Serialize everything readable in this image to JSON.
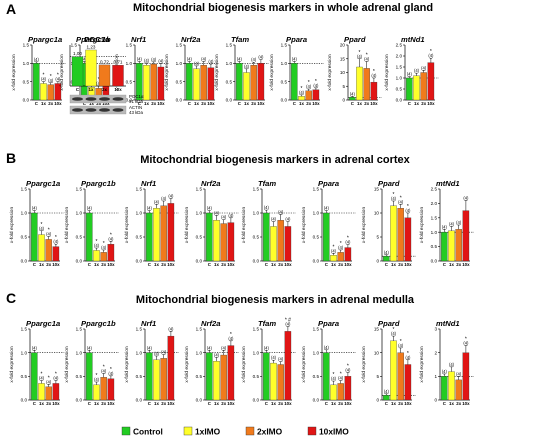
{
  "colors": {
    "control": "#22cc22",
    "x1": "#ffff2a",
    "x2": "#f07a1c",
    "x10": "#e01515"
  },
  "ylabel": "x-fold expression",
  "categories": [
    "C",
    "1x",
    "2x",
    "10x"
  ],
  "legend": [
    {
      "label": "Control",
      "color": "#22cc22"
    },
    {
      "label": "1xIMO",
      "color": "#ffff2a"
    },
    {
      "label": "2xIMO",
      "color": "#f07a1c"
    },
    {
      "label": "10xIMO",
      "color": "#e01515"
    }
  ],
  "western_blot": {
    "title": "PGC1α",
    "values": [
      "1,00",
      "1,23",
      "0,72",
      "0,71"
    ],
    "x_labels": [
      "C",
      "1x",
      "2x",
      "10x"
    ],
    "bands": [
      {
        "name": "PGC1α",
        "size": "91 kDa"
      },
      {
        "name": "ACTIN",
        "size": "43 kDa"
      }
    ]
  },
  "chart_data": [
    {
      "panel": "A",
      "type": "bar",
      "title": "Mitochondrial biogenesis markers in whole adrenal gland",
      "categories": [
        "C",
        "1x",
        "2x",
        "10x"
      ],
      "genes": [
        {
          "name": "Ppargc1a",
          "ylim": [
            0,
            1.5
          ],
          "yticks": [
            "0.0",
            "0.5",
            "1.0",
            "1.5"
          ],
          "values": [
            1.0,
            0.45,
            0.42,
            0.45
          ],
          "errors": [
            0.04,
            0.05,
            0.05,
            0.05
          ],
          "n": [
            "(4)",
            "(4)",
            "(4)",
            "(4)"
          ],
          "stars": [
            "",
            "*",
            "*",
            "*"
          ]
        },
        {
          "name": "Ppargc1b",
          "ylim": [
            0,
            1.5
          ],
          "yticks": [
            "0.0",
            "0.5",
            "1.0",
            "1.5"
          ],
          "values": [
            1.0,
            0.35,
            0.32,
            0.4
          ],
          "errors": [
            0.05,
            0.06,
            0.06,
            0.06
          ],
          "n": [
            "(4)",
            "(4)",
            "(4)",
            "(4)"
          ],
          "stars": [
            "",
            "*",
            "*",
            "*"
          ]
        },
        {
          "name": "Nrf1",
          "ylim": [
            0,
            1.5
          ],
          "yticks": [
            "0.0",
            "0.5",
            "1.0",
            "1.5"
          ],
          "values": [
            1.0,
            0.95,
            0.98,
            0.9
          ],
          "errors": [
            0.05,
            0.06,
            0.06,
            0.1
          ],
          "n": [
            "(4)",
            "(4)",
            "(4)",
            "(4)"
          ],
          "stars": [
            "",
            "",
            "",
            ""
          ]
        },
        {
          "name": "Nrf2a",
          "ylim": [
            0,
            1.5
          ],
          "yticks": [
            "0.0",
            "0.5",
            "1.0",
            "1.5"
          ],
          "values": [
            1.0,
            0.85,
            0.95,
            0.88
          ],
          "errors": [
            0.05,
            0.08,
            0.1,
            0.1
          ],
          "n": [
            "(4)",
            "(4)",
            "(4)",
            "(4)"
          ],
          "stars": [
            "",
            "",
            "",
            ""
          ]
        },
        {
          "name": "Tfam",
          "ylim": [
            0,
            1.5
          ],
          "yticks": [
            "0.0",
            "0.5",
            "1.0",
            "1.5"
          ],
          "values": [
            1.0,
            0.75,
            0.95,
            1.0
          ],
          "errors": [
            0.05,
            0.1,
            0.08,
            0.1
          ],
          "n": [
            "(4)",
            "(4)",
            "(4)",
            "(4)"
          ],
          "stars": [
            "",
            "",
            "",
            ""
          ]
        },
        {
          "name": "Ppara",
          "ylim": [
            0,
            1.5
          ],
          "yticks": [
            "0.0",
            "0.5",
            "1.0",
            "1.5"
          ],
          "values": [
            1.0,
            0.1,
            0.25,
            0.28
          ],
          "errors": [
            0.05,
            0.04,
            0.05,
            0.05
          ],
          "n": [
            "(4)",
            "(4)",
            "(4)",
            "(4)"
          ],
          "stars": [
            "",
            "*",
            "*",
            "*"
          ]
        },
        {
          "name": "Ppard",
          "ylim": [
            0,
            20
          ],
          "yticks": [
            "0",
            "5",
            "10",
            "15",
            "20"
          ],
          "values": [
            1.0,
            12.0,
            11.5,
            6.5
          ],
          "errors": [
            0.3,
            3.0,
            2.5,
            1.5
          ],
          "n": [
            "(4)",
            "(4)",
            "(4)",
            "(4)"
          ],
          "stars": [
            "",
            "*",
            "*",
            "*"
          ]
        },
        {
          "name": "mtNd1",
          "ylim": [
            0,
            2.5
          ],
          "yticks": [
            "0.0",
            "0.5",
            "1.0",
            "1.5",
            "2.0",
            "2.5"
          ],
          "values": [
            1.0,
            1.1,
            1.25,
            1.7
          ],
          "errors": [
            0.06,
            0.12,
            0.1,
            0.2
          ],
          "n": [
            "(4)",
            "(4)",
            "(4)",
            "(4)"
          ],
          "stars": [
            "",
            "",
            "",
            "*"
          ]
        }
      ]
    },
    {
      "panel": "B",
      "type": "bar",
      "title": "Mitochondrial biogenesis markers in  adrenal cortex",
      "categories": [
        "C",
        "1x",
        "2x",
        "10x"
      ],
      "genes": [
        {
          "name": "Ppargc1a",
          "ylim": [
            0,
            1.5
          ],
          "yticks": [
            "0.0",
            "0.5",
            "1.0",
            "1.5"
          ],
          "values": [
            1.0,
            0.55,
            0.45,
            0.3
          ],
          "errors": [
            0.05,
            0.08,
            0.06,
            0.05
          ],
          "n": [
            "(4)",
            "(4)",
            "(4)",
            "(4)"
          ],
          "stars": [
            "",
            "*",
            "*",
            "*"
          ]
        },
        {
          "name": "Ppargc1b",
          "ylim": [
            0,
            1.5
          ],
          "yticks": [
            "0.0",
            "0.5",
            "1.0",
            "1.5"
          ],
          "values": [
            1.0,
            0.22,
            0.18,
            0.35
          ],
          "errors": [
            0.05,
            0.05,
            0.05,
            0.06
          ],
          "n": [
            "(4)",
            "(4)",
            "(4)",
            "(4)"
          ],
          "stars": [
            "",
            "*",
            "*",
            "*"
          ]
        },
        {
          "name": "Nrf1",
          "ylim": [
            0,
            1.5
          ],
          "yticks": [
            "0.0",
            "0.5",
            "1.0",
            "1.5"
          ],
          "values": [
            1.0,
            1.1,
            1.15,
            1.2
          ],
          "errors": [
            0.05,
            0.08,
            0.1,
            0.1
          ],
          "n": [
            "(4)",
            "(4)",
            "(4)",
            "(4)"
          ],
          "stars": [
            "",
            "",
            "",
            ""
          ]
        },
        {
          "name": "Nrf2a",
          "ylim": [
            0,
            1.5
          ],
          "yticks": [
            "0.0",
            "0.5",
            "1.0",
            "1.5"
          ],
          "values": [
            1.0,
            0.85,
            0.78,
            0.8
          ],
          "errors": [
            0.05,
            0.1,
            0.08,
            0.1
          ],
          "n": [
            "(4)",
            "(4)",
            "(4)",
            "(4)"
          ],
          "stars": [
            "",
            "",
            "",
            ""
          ]
        },
        {
          "name": "Tfam",
          "ylim": [
            0,
            1.5
          ],
          "yticks": [
            "0.0",
            "0.5",
            "1.0",
            "1.5"
          ],
          "values": [
            1.0,
            0.72,
            0.85,
            0.72
          ],
          "errors": [
            0.06,
            0.1,
            0.12,
            0.1
          ],
          "n": [
            "(4)",
            "(4)",
            "(4)",
            "(4)"
          ],
          "stars": [
            "",
            "",
            "",
            ""
          ]
        },
        {
          "name": "Ppara",
          "ylim": [
            0,
            1.5
          ],
          "yticks": [
            "0.0",
            "0.5",
            "1.0",
            "1.5"
          ],
          "values": [
            1.0,
            0.12,
            0.18,
            0.28
          ],
          "errors": [
            0.05,
            0.04,
            0.05,
            0.06
          ],
          "n": [
            "(4)",
            "(4)",
            "(4)",
            "(4)"
          ],
          "stars": [
            "",
            "*",
            "*",
            "*"
          ]
        },
        {
          "name": "Ppard",
          "ylim": [
            0,
            15
          ],
          "yticks": [
            "0",
            "5",
            "10",
            "15"
          ],
          "values": [
            1.0,
            11.5,
            11.0,
            9.0
          ],
          "errors": [
            0.3,
            1.0,
            0.8,
            1.0
          ],
          "n": [
            "(4)",
            "(4)",
            "(4)",
            "(4)"
          ],
          "stars": [
            "",
            "*",
            "*",
            "*"
          ]
        },
        {
          "name": "mtNd1",
          "ylim": [
            0,
            2.5
          ],
          "yticks": [
            "0.0",
            "0.5",
            "1.0",
            "1.5",
            "2.0",
            "2.5"
          ],
          "values": [
            1.0,
            1.05,
            1.1,
            1.75
          ],
          "errors": [
            0.1,
            0.15,
            0.15,
            0.35
          ],
          "n": [
            "(4)",
            "(4)",
            "(4)",
            "(4)"
          ],
          "stars": [
            "",
            "",
            "",
            ""
          ]
        }
      ]
    },
    {
      "panel": "C",
      "type": "bar",
      "title": "Mitochondrial biogenesis markers in  adrenal medulla",
      "categories": [
        "C",
        "1x",
        "2x",
        "10x"
      ],
      "genes": [
        {
          "name": "Ppargc1a",
          "ylim": [
            0,
            1.5
          ],
          "yticks": [
            "0.0",
            "0.5",
            "1.0",
            "1.5"
          ],
          "values": [
            1.0,
            0.35,
            0.28,
            0.35
          ],
          "errors": [
            0.05,
            0.06,
            0.05,
            0.06
          ],
          "n": [
            "(4)",
            "(4)",
            "(4)",
            "(4)"
          ],
          "stars": [
            "",
            "*",
            "*",
            "*"
          ]
        },
        {
          "name": "Ppargc1b",
          "ylim": [
            0,
            1.5
          ],
          "yticks": [
            "0.0",
            "0.5",
            "1.0",
            "1.5"
          ],
          "values": [
            1.0,
            0.32,
            0.48,
            0.45
          ],
          "errors": [
            0.05,
            0.06,
            0.08,
            0.06
          ],
          "n": [
            "(4)",
            "(4)",
            "(4)",
            "(4)"
          ],
          "stars": [
            "",
            "*",
            "*",
            "*"
          ]
        },
        {
          "name": "Nrf1",
          "ylim": [
            0,
            1.5
          ],
          "yticks": [
            "0.0",
            "0.5",
            "1.0",
            "1.5"
          ],
          "values": [
            1.0,
            0.85,
            0.88,
            1.35
          ],
          "errors": [
            0.05,
            0.08,
            0.08,
            0.1
          ],
          "n": [
            "(4)",
            "(4)",
            "(4)",
            "(4)"
          ],
          "stars": [
            "",
            "",
            "",
            ""
          ]
        },
        {
          "name": "Nrf2a",
          "ylim": [
            0,
            1.5
          ],
          "yticks": [
            "0.0",
            "0.5",
            "1.0",
            "1.5"
          ],
          "values": [
            1.0,
            0.82,
            0.95,
            1.15
          ],
          "errors": [
            0.05,
            0.08,
            0.1,
            0.1
          ],
          "n": [
            "(4)",
            "(4)",
            "(4)",
            "(4)"
          ],
          "stars": [
            "",
            "",
            "",
            "*"
          ]
        },
        {
          "name": "Tfam",
          "ylim": [
            0,
            1.5
          ],
          "yticks": [
            "0.0",
            "0.5",
            "1.0",
            "1.5"
          ],
          "values": [
            1.0,
            0.78,
            0.75,
            1.45
          ],
          "errors": [
            0.05,
            0.06,
            0.06,
            0.1
          ],
          "n": [
            "(4)",
            "(4)",
            "(4)",
            "(4)"
          ],
          "stars": [
            "",
            "",
            "",
            "* #"
          ]
        },
        {
          "name": "Ppara",
          "ylim": [
            0,
            1.5
          ],
          "yticks": [
            "0.0",
            "0.5",
            "1.0",
            "1.5"
          ],
          "values": [
            1.0,
            0.32,
            0.35,
            0.5
          ],
          "errors": [
            0.06,
            0.08,
            0.06,
            0.08
          ],
          "n": [
            "(4)",
            "(4)",
            "(4)",
            "(4)"
          ],
          "stars": [
            "",
            "*",
            "*",
            "*"
          ]
        },
        {
          "name": "Ppard",
          "ylim": [
            0,
            15
          ],
          "yticks": [
            "0",
            "5",
            "10",
            "15"
          ],
          "values": [
            1.0,
            12.5,
            10.0,
            7.5
          ],
          "errors": [
            0.3,
            1.0,
            1.0,
            1.0
          ],
          "n": [
            "(4)",
            "(4)",
            "(4)",
            "(4)"
          ],
          "stars": [
            "",
            "*",
            "*",
            "*"
          ]
        },
        {
          "name": "mtNd1",
          "ylim": [
            0,
            3
          ],
          "yticks": [
            "0",
            "1",
            "2",
            "3"
          ],
          "values": [
            1.0,
            1.2,
            0.85,
            2.0
          ],
          "errors": [
            0.1,
            0.2,
            0.15,
            0.3
          ],
          "n": [
            "(4)",
            "(4)",
            "(4)",
            "(4)"
          ],
          "stars": [
            "",
            "",
            "",
            "*"
          ]
        }
      ]
    }
  ]
}
